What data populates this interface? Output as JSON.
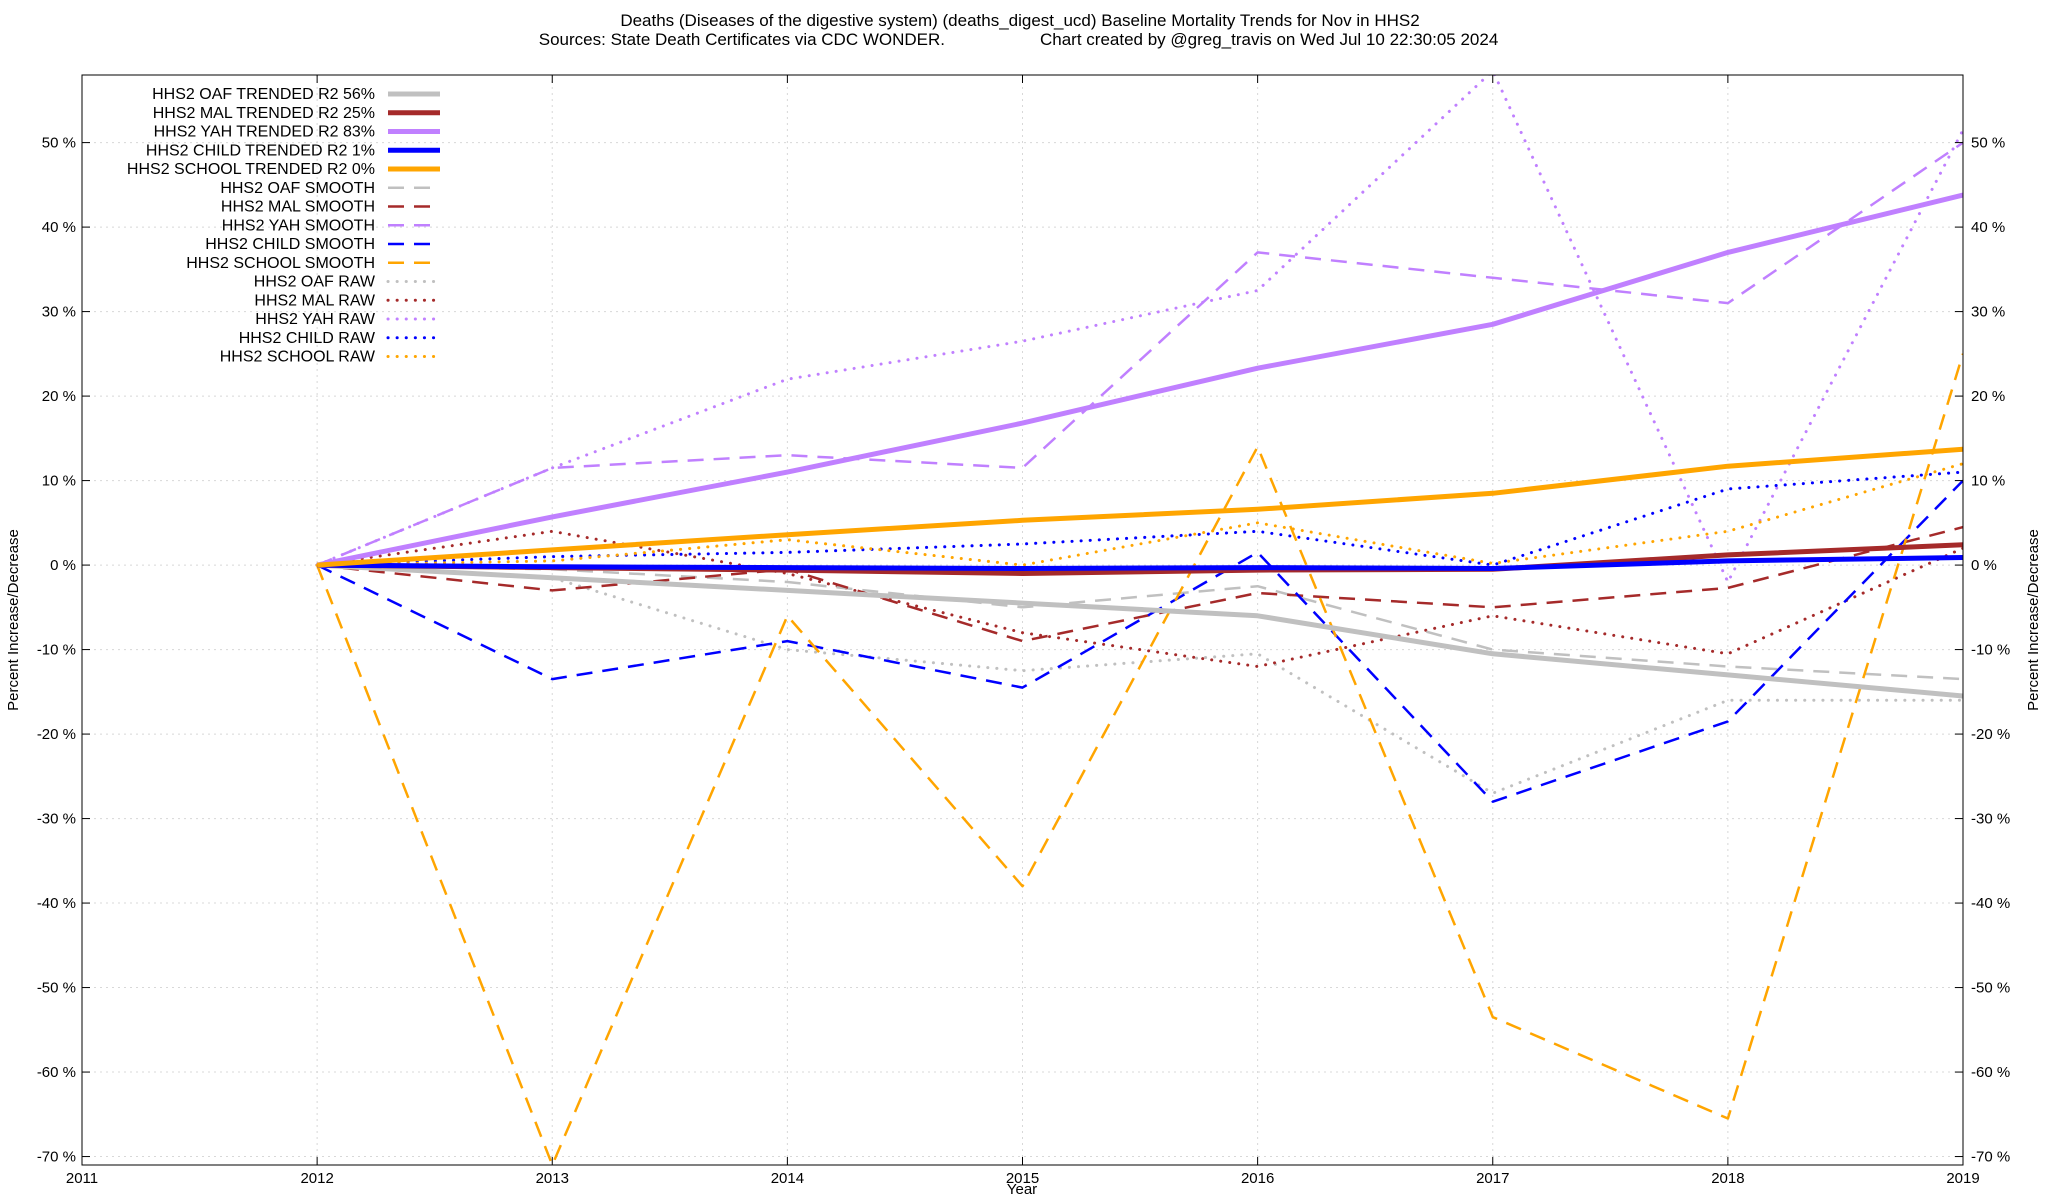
{
  "chart_data": {
    "type": "line",
    "title": "Deaths (Diseases of the digestive system) (deaths_digest_ucd)  Baseline Mortality Trends for Nov in HHS2",
    "subtitle_left": "Sources: State Death Certificates via CDC WONDER.",
    "subtitle_right": "Chart created by @greg_travis on Wed Jul 10 22:30:05 2024",
    "xlabel": "Year",
    "ylabel": "Percent Increase/Decrease",
    "y2label": "Percent Increase/Decrease",
    "xlim": [
      2011,
      2019
    ],
    "ylim": [
      -71,
      58
    ],
    "grid": true,
    "legend_position": "top-left",
    "x_ticks": [
      "2011",
      "2012",
      "2013",
      "2014",
      "2015",
      "2016",
      "2017",
      "2018",
      "2019"
    ],
    "y_ticks": [
      "-70 %",
      "-60 %",
      "-50 %",
      "-40 %",
      "-30 %",
      "-20 %",
      "-10 %",
      "0 %",
      "10 %",
      "20 %",
      "30 %",
      "40 %",
      "50 %"
    ],
    "x": [
      2012,
      2013,
      2014,
      2015,
      2016,
      2017,
      2018,
      2019
    ],
    "series": [
      {
        "name": "HHS2 OAF TRENDED R2",
        "r2": "56%",
        "style": "solid",
        "color": "#c0c0c0",
        "values": [
          0,
          -1.5,
          -3,
          -4.5,
          -6,
          -10.5,
          -13,
          -15.5
        ]
      },
      {
        "name": "HHS2 MAL TRENDED R2",
        "r2": "25%",
        "style": "solid",
        "color": "#a52a2a",
        "values": [
          0,
          -0.3,
          -0.6,
          -1,
          -0.6,
          -0.5,
          1.2,
          2.4
        ]
      },
      {
        "name": "HHS2 YAH TRENDED R2",
        "r2": "83%",
        "style": "solid",
        "color": "#c080ff",
        "values": [
          0,
          5.7,
          11,
          16.8,
          23.3,
          28.5,
          37,
          43.8
        ]
      },
      {
        "name": "HHS2 CHILD TRENDED R2",
        "r2": "1%",
        "style": "solid",
        "color": "#0000ff",
        "values": [
          0,
          -0.2,
          -0.3,
          -0.4,
          -0.3,
          -0.4,
          0.5,
          0.9
        ]
      },
      {
        "name": "HHS2 SCHOOL TRENDED R2",
        "r2": "0%",
        "style": "solid",
        "color": "#ffa500",
        "values": [
          0,
          1.8,
          3.6,
          5.3,
          6.6,
          8.5,
          11.7,
          13.7
        ]
      },
      {
        "name": "HHS2 OAF SMOOTH",
        "style": "dashed",
        "color": "#c0c0c0",
        "values": [
          0,
          -0.5,
          -2,
          -5,
          -2.5,
          -10,
          -12,
          -13.5
        ]
      },
      {
        "name": "HHS2 MAL SMOOTH",
        "style": "dashed",
        "color": "#a52a2a",
        "values": [
          0,
          -3,
          -0.5,
          -9,
          -3.3,
          -5,
          -2.7,
          4.5
        ]
      },
      {
        "name": "HHS2 YAH SMOOTH",
        "style": "dashed",
        "color": "#c080ff",
        "values": [
          0,
          11.5,
          13,
          11.5,
          37,
          34,
          31,
          50
        ]
      },
      {
        "name": "HHS2 CHILD SMOOTH",
        "style": "dashed",
        "color": "#0000ff",
        "values": [
          0,
          -13.5,
          -9,
          -14.5,
          1.5,
          -28,
          -18.5,
          10
        ]
      },
      {
        "name": "HHS2 SCHOOL SMOOTH",
        "style": "dashed",
        "color": "#ffa500",
        "values": [
          0,
          -71,
          -6,
          -38,
          14,
          -53.5,
          -65.5,
          25
        ]
      },
      {
        "name": "HHS2 OAF RAW",
        "style": "dotted",
        "color": "#c0c0c0",
        "values": [
          0,
          -1.5,
          -10,
          -12.5,
          -10.5,
          -27,
          -16,
          -16
        ]
      },
      {
        "name": "HHS2 MAL RAW",
        "style": "dotted",
        "color": "#a52a2a",
        "values": [
          0,
          4,
          -1,
          -8,
          -12,
          -6,
          -10.5,
          2
        ]
      },
      {
        "name": "HHS2 YAH RAW",
        "style": "dotted",
        "color": "#c080ff",
        "values": [
          0,
          11.5,
          22,
          26.5,
          32.5,
          58.5,
          -2,
          51.5
        ]
      },
      {
        "name": "HHS2 CHILD RAW",
        "style": "dotted",
        "color": "#0000ff",
        "values": [
          0,
          1,
          1.5,
          2.5,
          4,
          0,
          9,
          11
        ]
      },
      {
        "name": "HHS2 SCHOOL RAW",
        "style": "dotted",
        "color": "#ffa500",
        "values": [
          0,
          0.5,
          3,
          0,
          5,
          0.2,
          4,
          12
        ]
      }
    ]
  }
}
